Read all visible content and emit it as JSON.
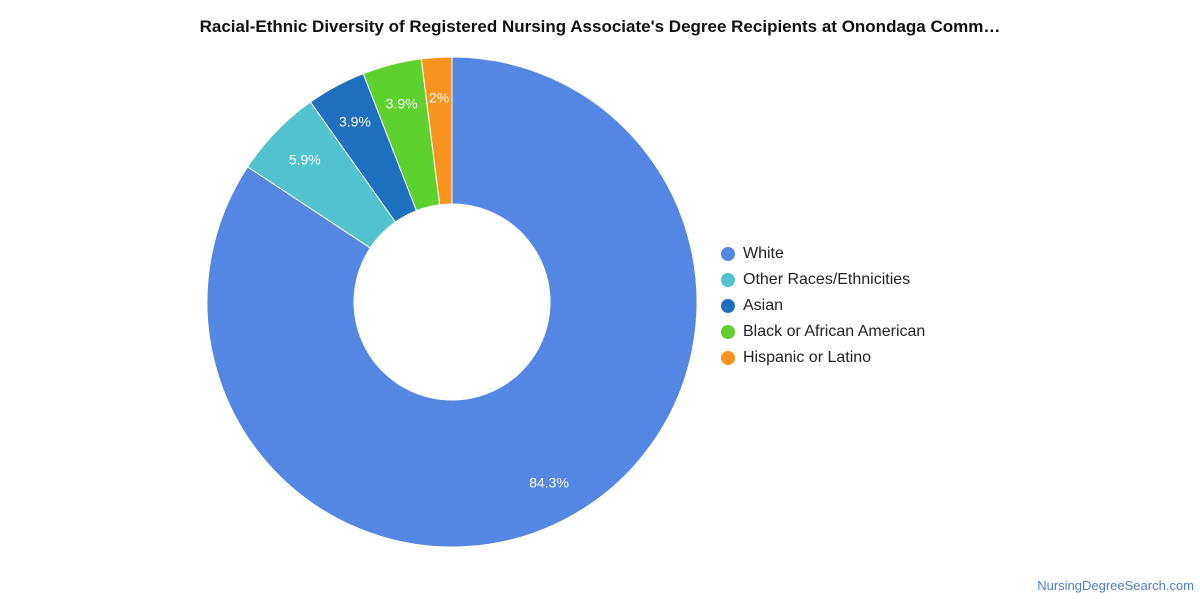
{
  "chart_data": {
    "type": "pie",
    "variant": "donut",
    "title": "Racial-Ethnic Diversity of Registered Nursing Associate's Degree Recipients at Onondaga Comm…",
    "categories": [
      "White",
      "Other Races/Ethnicities",
      "Asian",
      "Black or African American",
      "Hispanic or Latino"
    ],
    "values": [
      84.3,
      5.9,
      3.9,
      3.9,
      2
    ],
    "value_labels": [
      "84.3%",
      "5.9%",
      "3.9%",
      "3.9%",
      "2%"
    ],
    "colors": [
      "#5486e3",
      "#53c2cf",
      "#1f6fbf",
      "#5fd12f",
      "#f7931e"
    ],
    "legend_placement": "right"
  },
  "footer": {
    "source": "NursingDegreeSearch.com"
  }
}
